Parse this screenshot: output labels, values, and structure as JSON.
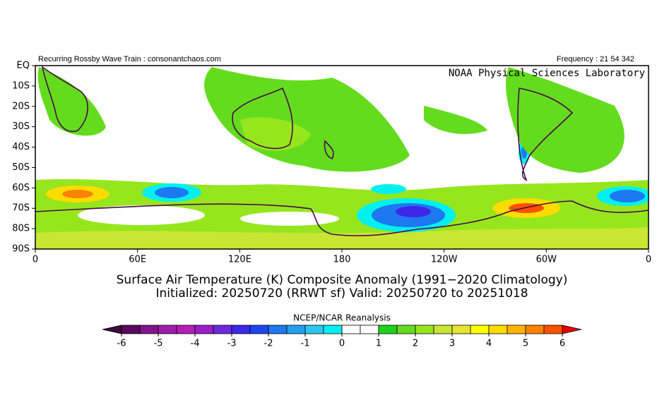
{
  "header": {
    "source": "Recurring Rossby Wave Train : consonantchaos.com",
    "frequency": "Frequency : 21 54 342",
    "lab": "NOAA Physical Sciences Laboratory"
  },
  "map": {
    "yticks": [
      "EQ",
      "10S",
      "20S",
      "30S",
      "40S",
      "50S",
      "60S",
      "70S",
      "80S",
      "90S"
    ],
    "xticks": [
      "0",
      "60E",
      "120E",
      "180",
      "120W",
      "60W",
      "0"
    ]
  },
  "title": {
    "line1": "Surface Air Temperature (K) Composite Anomaly (1991−2020 Climatology)",
    "line2": "Initialized: 20250720 (RRWT sf) Valid: 20250720 to 20251018"
  },
  "colorbar": {
    "label": "NCEP/NCAR Reanalysis",
    "ticks": [
      -6,
      -5,
      -4,
      -3,
      -2,
      -1,
      0,
      1,
      2,
      3,
      4,
      5,
      6
    ],
    "colors": [
      "#5a0a5a",
      "#82148c",
      "#a01eaa",
      "#b41eb4",
      "#9b1ec8",
      "#6e28dc",
      "#3c28e6",
      "#1e46f0",
      "#1e78f0",
      "#28a0f0",
      "#28c8f0",
      "#00f0f0",
      "#ffffff",
      "#ffffff",
      "#1ed21e",
      "#64dc1e",
      "#96e61e",
      "#c8e632",
      "#e6e632",
      "#ffff00",
      "#ffdc00",
      "#ffb400",
      "#ff8200",
      "#ff5000"
    ],
    "low_color": "#3c0a3c",
    "high_color": "#e60000"
  }
}
